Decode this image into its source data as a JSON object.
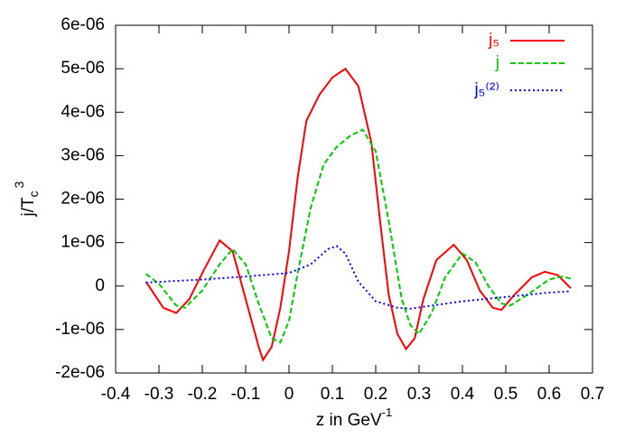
{
  "chart_data": {
    "type": "line",
    "xlabel": [
      "z in GeV",
      "-1"
    ],
    "ylabel": [
      "j/T",
      "c",
      "3"
    ],
    "xlim": [
      -0.4,
      0.7
    ],
    "xticks": [
      -0.4,
      -0.3,
      -0.2,
      -0.1,
      0,
      0.1,
      0.2,
      0.3,
      0.4,
      0.5,
      0.6,
      0.7
    ],
    "ylim": [
      -2e-06,
      6e-06
    ],
    "yticks": [
      {
        "value": -2e-06,
        "label": "-2e-06"
      },
      {
        "value": -1e-06,
        "label": "-1e-06"
      },
      0,
      {
        "value": 1e-06,
        "label": "1e-06"
      },
      {
        "value": 2e-06,
        "label": "2e-06"
      },
      {
        "value": 3e-06,
        "label": "3e-06"
      },
      {
        "value": 4e-06,
        "label": "4e-06"
      },
      {
        "value": 5e-06,
        "label": "5e-06"
      },
      {
        "value": 6e-06,
        "label": "6e-06"
      }
    ],
    "legend": "top-right",
    "series": [
      {
        "name": "j₅",
        "color": "#ff0000",
        "dash": "solid",
        "x": [
          -0.33,
          -0.29,
          -0.26,
          -0.23,
          -0.2,
          -0.16,
          -0.13,
          -0.1,
          -0.07,
          -0.06,
          -0.04,
          -0.02,
          0.0,
          0.02,
          0.04,
          0.07,
          0.1,
          0.13,
          0.16,
          0.19,
          0.21,
          0.23,
          0.25,
          0.27,
          0.29,
          0.31,
          0.34,
          0.38,
          0.41,
          0.44,
          0.47,
          0.49,
          0.52,
          0.56,
          0.59,
          0.62,
          0.65
        ],
        "values": [
          1e-07,
          -5e-07,
          -6.2e-07,
          -3e-07,
          3e-07,
          1.05e-06,
          8e-07,
          -3e-07,
          -1.4e-06,
          -1.7e-06,
          -1.4e-06,
          -5e-07,
          8e-07,
          2.5e-06,
          3.8e-06,
          4.4e-06,
          4.8e-06,
          5e-06,
          4.6e-06,
          3.3e-06,
          1.5e-06,
          -2e-07,
          -1.1e-06,
          -1.45e-06,
          -1.2e-06,
          -3e-07,
          6e-07,
          9.5e-07,
          6e-07,
          -1e-07,
          -5e-07,
          -5.5e-07,
          -2e-07,
          2e-07,
          3.3e-07,
          2.5e-07,
          -5e-08
        ]
      },
      {
        "name": "j",
        "color": "#00cc00",
        "dash": "dashed",
        "x": [
          -0.33,
          -0.3,
          -0.26,
          -0.24,
          -0.2,
          -0.16,
          -0.13,
          -0.1,
          -0.07,
          -0.04,
          -0.02,
          0.0,
          0.02,
          0.05,
          0.08,
          0.11,
          0.14,
          0.17,
          0.2,
          0.23,
          0.26,
          0.28,
          0.3,
          0.33,
          0.36,
          0.4,
          0.43,
          0.46,
          0.49,
          0.51,
          0.55,
          0.6,
          0.63,
          0.65
        ],
        "values": [
          2.8e-07,
          5e-08,
          -4.5e-07,
          -5e-07,
          -1e-07,
          5e-07,
          8.5e-07,
          5e-07,
          -4e-07,
          -1.2e-06,
          -1.3e-06,
          -8e-07,
          3e-07,
          1.8e-06,
          2.8e-06,
          3.2e-06,
          3.45e-06,
          3.6e-06,
          3.1e-06,
          1.5e-06,
          -3e-07,
          -9e-07,
          -1.1e-06,
          -6e-07,
          2e-07,
          7.5e-07,
          5.5e-07,
          0,
          -4e-07,
          -4.5e-07,
          -2e-07,
          1.5e-07,
          2.2e-07,
          1.7e-07
        ]
      },
      {
        "name": "j₅⁽²⁾",
        "color": "#0000ff",
        "dash": "dotted",
        "x": [
          -0.33,
          -0.2,
          -0.1,
          0.0,
          0.05,
          0.09,
          0.11,
          0.13,
          0.16,
          0.2,
          0.25,
          0.28,
          0.33,
          0.4,
          0.5,
          0.6,
          0.65
        ],
        "values": [
          8e-08,
          1.5e-07,
          2.2e-07,
          3e-07,
          5e-07,
          8.5e-07,
          9.2e-07,
          7.5e-07,
          1e-07,
          -3.5e-07,
          -5e-07,
          -5.2e-07,
          -4.5e-07,
          -3.5e-07,
          -2.5e-07,
          -1.5e-07,
          -1.2e-07
        ]
      }
    ]
  }
}
